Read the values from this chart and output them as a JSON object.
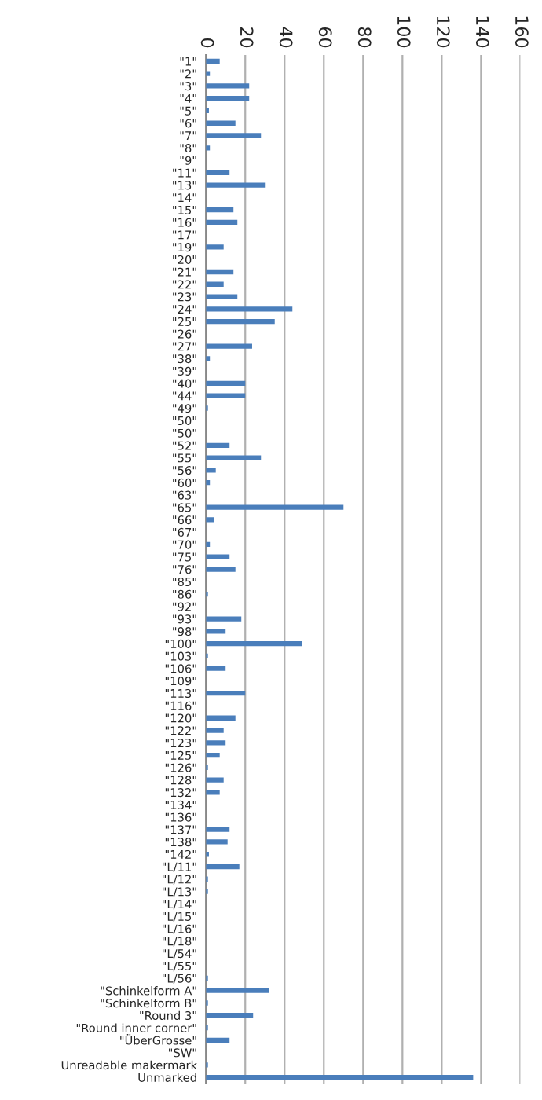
{
  "chart_data": {
    "type": "bar",
    "orientation": "horizontal",
    "categories": [
      "\"1\"",
      "\"2\"",
      "\"3\"",
      "\"4\"",
      "\"5\"",
      "\"6\"",
      "\"7\"",
      "\"8\"",
      "\"9\"",
      "\"11\"",
      "\"13\"",
      "\"14\"",
      "\"15\"",
      "\"16\"",
      "\"17\"",
      "\"19\"",
      "\"20\"",
      "\"21\"",
      "\"22\"",
      "\"23\"",
      "\"24\"",
      "\"25\"",
      "\"26\"",
      "\"27\"",
      "\"38\"",
      "\"39\"",
      "\"40\"",
      "\"44\"",
      "\"49\"",
      "\"50\"",
      "\"50\"",
      "\"52\"",
      "\"55\"",
      "\"56\"",
      "\"60\"",
      "\"63\"",
      "\"65\"",
      "\"66\"",
      "\"67\"",
      "\"70\"",
      "\"75\"",
      "\"76\"",
      "\"85\"",
      "\"86\"",
      "\"92\"",
      "\"93\"",
      "\"98\"",
      "\"100\"",
      "\"103\"",
      "\"106\"",
      "\"109\"",
      "\"113\"",
      "\"116\"",
      "\"120\"",
      "\"122\"",
      "\"123\"",
      "\"125\"",
      "\"126\"",
      "\"128\"",
      "\"132\"",
      "\"134\"",
      "\"136\"",
      "\"137\"",
      "\"138\"",
      "\"142\"",
      "\"L/11\"",
      "\"L/12\"",
      "\"L/13\"",
      "\"L/14\"",
      "\"L/15\"",
      "\"L/16\"",
      "\"L/18\"",
      "\"L/54\"",
      "\"L/55\"",
      "\"L/56\"",
      "\"Schinkelform A\"",
      "\"Schinkelform B\"",
      "\"Round 3\"",
      "\"Round inner corner\"",
      "\"ÜberGrosse\"",
      "\"SW\"",
      "Unreadable makermark",
      "Unmarked"
    ],
    "values": [
      7,
      2,
      22,
      22,
      1.5,
      15,
      28,
      2,
      null,
      12,
      30,
      null,
      14,
      16,
      null,
      9,
      null,
      14,
      9,
      16,
      44,
      35,
      null,
      23.5,
      2,
      null,
      20,
      20,
      1,
      null,
      null,
      12,
      28,
      5,
      2,
      null,
      70,
      4,
      null,
      2,
      12,
      15,
      null,
      1,
      null,
      18,
      10,
      49,
      1,
      10,
      null,
      20,
      null,
      15,
      9,
      10,
      7,
      1,
      9,
      7,
      null,
      null,
      12,
      11,
      1.5,
      17,
      1,
      1,
      null,
      null,
      null,
      null,
      null,
      null,
      1,
      32,
      1,
      24,
      1,
      12,
      null,
      1,
      136
    ],
    "color": "#4a7ebb",
    "xlim": [
      0,
      160
    ],
    "xticks": [
      0,
      20,
      40,
      60,
      80,
      100,
      120,
      140,
      160
    ],
    "grid": "x",
    "tick_labels": true
  }
}
